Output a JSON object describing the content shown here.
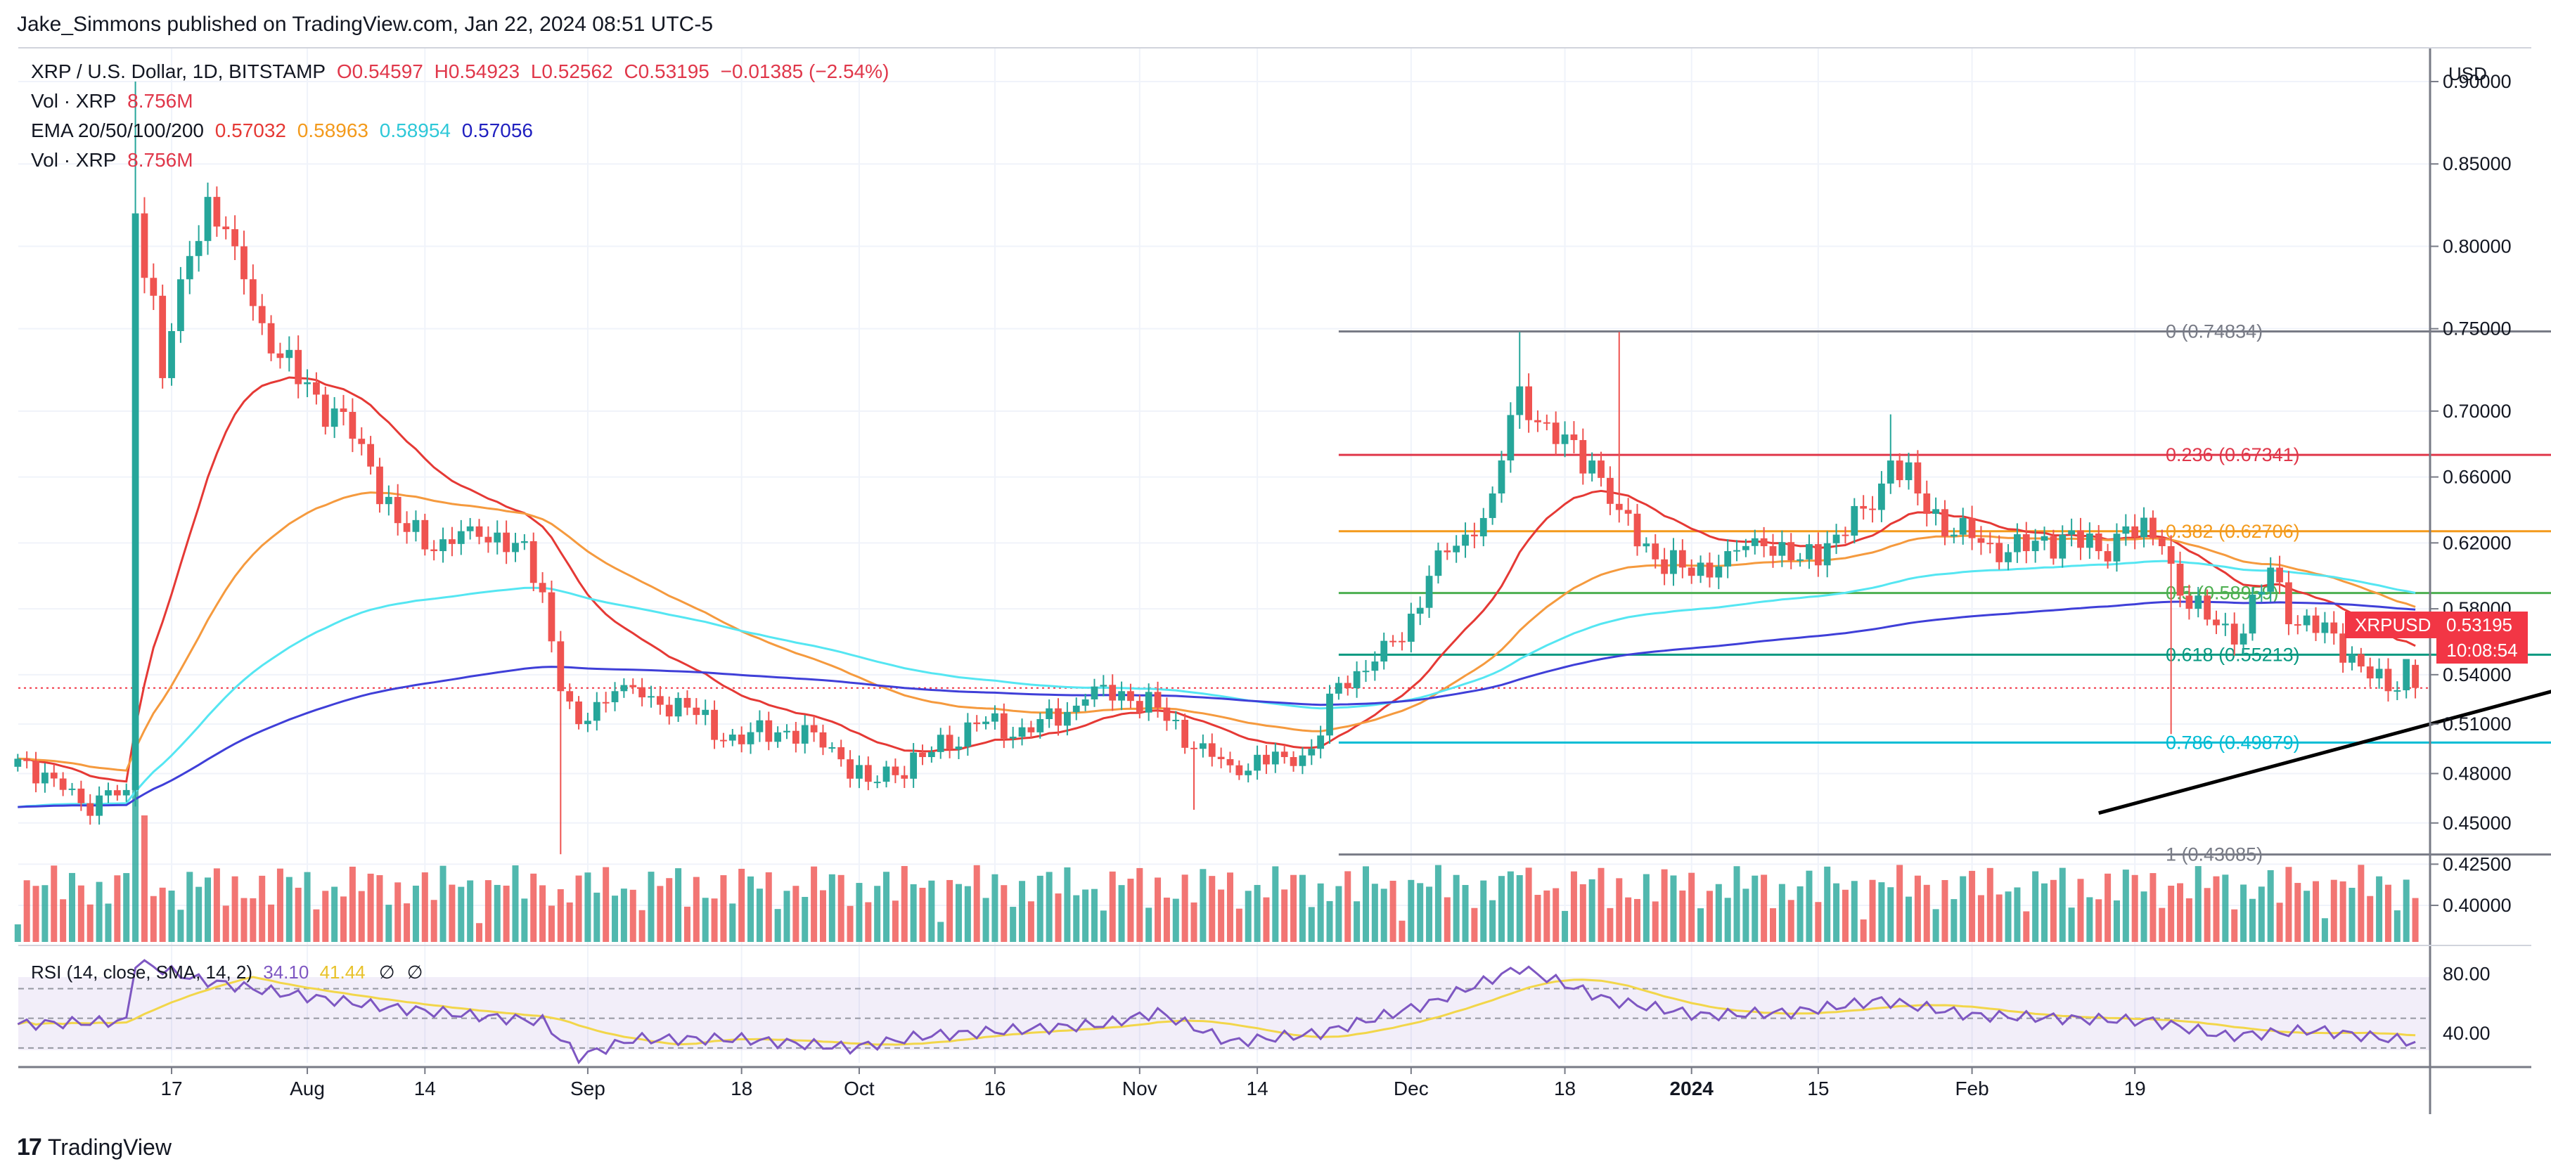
{
  "publisher": "Jake_Simmons published on TradingView.com, Jan 22, 2024 08:51 UTC-5",
  "brand": "TradingView",
  "brand_logo": "17",
  "currency": "USD",
  "symbol_tag": "XRPUSD",
  "last_price": "0.53195",
  "countdown": "10:08:54",
  "legend": {
    "line1": {
      "symbol": "XRP / U.S. Dollar, 1D, BITSTAMP",
      "open": "O0.54597",
      "high": "H0.54923",
      "low": "L0.52562",
      "close": "C0.53195",
      "change": "−0.01385 (−2.54%)"
    },
    "vol1": {
      "label": "Vol · XRP",
      "value": "8.756M"
    },
    "ema": {
      "label": "EMA 20/50/100/200",
      "v20": "0.57032",
      "v50": "0.58963",
      "v100": "0.58954",
      "v200": "0.57056"
    },
    "vol2": {
      "label": "Vol · XRP",
      "value": "8.756M"
    }
  },
  "rsi_legend": {
    "label": "RSI (14, close, SMA, 14, 2)",
    "rsi": "34.10",
    "sma": "41.44",
    "sym1": "∅",
    "sym2": "∅"
  },
  "colors": {
    "up": "#26a69a",
    "down": "#ef5350",
    "ema20": "#e53935",
    "ema50": "#f59a3e",
    "ema100": "#55e6f2",
    "ema200": "#3f3fd8",
    "rsi": "#7e57c2",
    "rsi_sma": "#f2d64a",
    "fib0": "#787b86",
    "fib236": "#e0374a",
    "fib382": "#f39a1c",
    "fib5": "#4caf50",
    "fib618": "#089981",
    "fib786": "#00bcd4",
    "fib1": "#787b86"
  },
  "chart_data": {
    "type": "candlestick",
    "title": "XRP / U.S. Dollar, 1D, BITSTAMP",
    "ylim": [
      0.3778,
      0.9205
    ],
    "y_ticks": [
      "0.90000",
      "0.85000",
      "0.80000",
      "0.75000",
      "0.70000",
      "0.66000",
      "0.62000",
      "0.58000",
      "0.54000",
      "0.51000",
      "0.48000",
      "0.45000",
      "0.42500",
      "0.40000"
    ],
    "x_ticks": [
      "17",
      "Aug",
      "14",
      "Sep",
      "18",
      "Oct",
      "16",
      "Nov",
      "14",
      "Dec",
      "18",
      "2024",
      "15",
      "Feb",
      "19"
    ],
    "price_line": 0.53195,
    "fib_levels": [
      {
        "label": "0 (0.74834)",
        "value": 0.74834,
        "key": "fib0"
      },
      {
        "label": "0.236 (0.67341)",
        "value": 0.67341,
        "key": "fib236"
      },
      {
        "label": "0.382 (0.62706)",
        "value": 0.62706,
        "key": "fib382"
      },
      {
        "label": "0.5 (0.58959)",
        "value": 0.58959,
        "key": "fib5"
      },
      {
        "label": "0.618 (0.55213)",
        "value": 0.55213,
        "key": "fib618"
      },
      {
        "label": "0.786 (0.49879)",
        "value": 0.49879,
        "key": "fib786"
      },
      {
        "label": "1 (0.43085)",
        "value": 0.43085,
        "key": "fib1"
      }
    ],
    "fib_range_days": [
      146,
      305
    ],
    "trendline": [
      {
        "day": 230,
        "price": 0.456
      },
      {
        "day": 350,
        "price": 0.633
      }
    ],
    "start_date": "2023-06-30",
    "anchors": [
      {
        "d": 0,
        "p": 0.489
      },
      {
        "d": 4,
        "p": 0.477
      },
      {
        "d": 7,
        "p": 0.462
      },
      {
        "d": 12,
        "p": 0.47
      },
      {
        "d": 13,
        "p": 0.82
      },
      {
        "d": 15,
        "p": 0.77
      },
      {
        "d": 16,
        "p": 0.72
      },
      {
        "d": 18,
        "p": 0.78
      },
      {
        "d": 21,
        "p": 0.83
      },
      {
        "d": 24,
        "p": 0.8
      },
      {
        "d": 28,
        "p": 0.735
      },
      {
        "d": 33,
        "p": 0.71
      },
      {
        "d": 38,
        "p": 0.68
      },
      {
        "d": 42,
        "p": 0.632
      },
      {
        "d": 46,
        "p": 0.615
      },
      {
        "d": 50,
        "p": 0.63
      },
      {
        "d": 55,
        "p": 0.62
      },
      {
        "d": 58,
        "p": 0.59
      },
      {
        "d": 60,
        "p": 0.53
      },
      {
        "d": 62,
        "p": 0.51
      },
      {
        "d": 66,
        "p": 0.53
      },
      {
        "d": 70,
        "p": 0.527
      },
      {
        "d": 74,
        "p": 0.52
      },
      {
        "d": 78,
        "p": 0.5
      },
      {
        "d": 84,
        "p": 0.505
      },
      {
        "d": 88,
        "p": 0.505
      },
      {
        "d": 94,
        "p": 0.475
      },
      {
        "d": 100,
        "p": 0.49
      },
      {
        "d": 106,
        "p": 0.51
      },
      {
        "d": 112,
        "p": 0.505
      },
      {
        "d": 118,
        "p": 0.525
      },
      {
        "d": 122,
        "p": 0.53
      },
      {
        "d": 126,
        "p": 0.52
      },
      {
        "d": 130,
        "p": 0.495
      },
      {
        "d": 134,
        "p": 0.485
      },
      {
        "d": 140,
        "p": 0.49
      },
      {
        "d": 143,
        "p": 0.495
      },
      {
        "d": 146,
        "p": 0.535
      },
      {
        "d": 150,
        "p": 0.548
      },
      {
        "d": 153,
        "p": 0.56
      },
      {
        "d": 156,
        "p": 0.6
      },
      {
        "d": 160,
        "p": 0.625
      },
      {
        "d": 163,
        "p": 0.65
      },
      {
        "d": 166,
        "p": 0.715
      },
      {
        "d": 170,
        "p": 0.68
      },
      {
        "d": 174,
        "p": 0.67
      },
      {
        "d": 177,
        "p": 0.64
      },
      {
        "d": 181,
        "p": 0.61
      },
      {
        "d": 185,
        "p": 0.6
      },
      {
        "d": 189,
        "p": 0.615
      },
      {
        "d": 193,
        "p": 0.618
      },
      {
        "d": 197,
        "p": 0.61
      },
      {
        "d": 201,
        "p": 0.625
      },
      {
        "d": 205,
        "p": 0.64
      },
      {
        "d": 207,
        "p": 0.67
      },
      {
        "d": 210,
        "p": 0.65
      },
      {
        "d": 214,
        "p": 0.625
      },
      {
        "d": 218,
        "p": 0.62
      },
      {
        "d": 222,
        "p": 0.615
      },
      {
        "d": 226,
        "p": 0.625
      },
      {
        "d": 230,
        "p": 0.615
      },
      {
        "d": 233,
        "p": 0.63
      },
      {
        "d": 237,
        "p": 0.618
      },
      {
        "d": 240,
        "p": 0.58
      },
      {
        "d": 243,
        "p": 0.57
      },
      {
        "d": 246,
        "p": 0.565
      },
      {
        "d": 249,
        "p": 0.605
      },
      {
        "d": 252,
        "p": 0.57
      },
      {
        "d": 256,
        "p": 0.565
      },
      {
        "d": 259,
        "p": 0.545
      },
      {
        "d": 262,
        "p": 0.53
      },
      {
        "d": 264,
        "p": 0.5495
      },
      {
        "d": 265,
        "p": 0.53195
      }
    ],
    "rsi_ylim": [
      20,
      92
    ],
    "rsi_ticks": [
      "80.00",
      "40.00"
    ],
    "rsi_anchors": [
      {
        "d": 0,
        "p": 46
      },
      {
        "d": 12,
        "p": 48
      },
      {
        "d": 13,
        "p": 88
      },
      {
        "d": 20,
        "p": 76
      },
      {
        "d": 28,
        "p": 68
      },
      {
        "d": 40,
        "p": 58
      },
      {
        "d": 50,
        "p": 52
      },
      {
        "d": 58,
        "p": 48
      },
      {
        "d": 62,
        "p": 24
      },
      {
        "d": 68,
        "p": 36
      },
      {
        "d": 80,
        "p": 36
      },
      {
        "d": 92,
        "p": 30
      },
      {
        "d": 100,
        "p": 38
      },
      {
        "d": 110,
        "p": 42
      },
      {
        "d": 120,
        "p": 46
      },
      {
        "d": 126,
        "p": 54
      },
      {
        "d": 134,
        "p": 34
      },
      {
        "d": 144,
        "p": 40
      },
      {
        "d": 156,
        "p": 60
      },
      {
        "d": 166,
        "p": 84
      },
      {
        "d": 176,
        "p": 62
      },
      {
        "d": 186,
        "p": 52
      },
      {
        "d": 196,
        "p": 54
      },
      {
        "d": 206,
        "p": 62
      },
      {
        "d": 216,
        "p": 52
      },
      {
        "d": 226,
        "p": 50
      },
      {
        "d": 236,
        "p": 48
      },
      {
        "d": 244,
        "p": 38
      },
      {
        "d": 254,
        "p": 42
      },
      {
        "d": 265,
        "p": 34
      }
    ]
  }
}
